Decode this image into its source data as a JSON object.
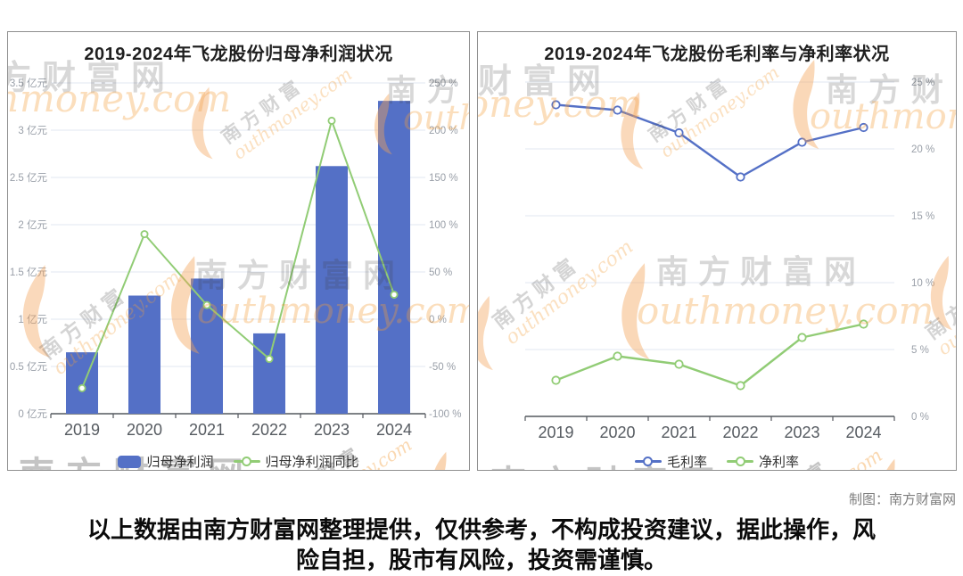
{
  "page": {
    "credit": "制图：南方财富网",
    "disclaimer": "以上数据由南方财富网整理提供，仅供参考，不构成投资建议，据此操作，风险自担，股市有风险，投资需谨慎。"
  },
  "watermark": {
    "cn": "南方财富网",
    "cn_short": "南方财富",
    "en": "Southmoney.com",
    "en_partial": "outhmoney.com",
    "accent_color": "#f2a156",
    "gray_color": "#3c3c3c"
  },
  "colors": {
    "bar_blue": "#5470c6",
    "line_green": "#91cc75",
    "grid": "#e2e7f1",
    "axis": "#54585e",
    "tick_label": "#999fa8",
    "x_label": "#565b61"
  },
  "chart_data": [
    {
      "type": "bar",
      "title": "2019-2024年飞龙股份归母净利润状况",
      "categories": [
        "2019",
        "2020",
        "2021",
        "2022",
        "2023",
        "2024"
      ],
      "series": [
        {
          "name": "归母净利润",
          "type": "bar",
          "unit": "亿元",
          "axis": "left",
          "color": "#5470c6",
          "values": [
            0.65,
            1.25,
            1.43,
            0.85,
            2.62,
            3.31
          ]
        },
        {
          "name": "归母净利润同比",
          "type": "line",
          "unit": "%",
          "axis": "right",
          "color": "#91cc75",
          "values": [
            -73,
            90,
            15,
            -42,
            210,
            26
          ]
        }
      ],
      "left_axis": {
        "min": 0,
        "max": 3.5,
        "step": 0.5,
        "unit": "亿元"
      },
      "right_axis": {
        "min": -100,
        "max": 250,
        "step": 50,
        "unit": "%"
      },
      "grid": true,
      "legend_position": "bottom"
    },
    {
      "type": "line",
      "title": "2019-2024年飞龙股份毛利率与净利率状况",
      "categories": [
        "2019",
        "2020",
        "2021",
        "2022",
        "2023",
        "2024"
      ],
      "series": [
        {
          "name": "毛利率",
          "type": "line",
          "unit": "%",
          "axis": "right",
          "color": "#5470c6",
          "values": [
            23.3,
            22.9,
            21.2,
            17.9,
            20.5,
            21.6
          ]
        },
        {
          "name": "净利率",
          "type": "line",
          "unit": "%",
          "axis": "right",
          "color": "#91cc75",
          "values": [
            2.7,
            4.5,
            3.9,
            2.3,
            5.9,
            6.9
          ]
        }
      ],
      "right_axis": {
        "min": 0,
        "max": 25,
        "step": 5,
        "unit": "%"
      },
      "grid": true,
      "legend_position": "bottom"
    }
  ]
}
